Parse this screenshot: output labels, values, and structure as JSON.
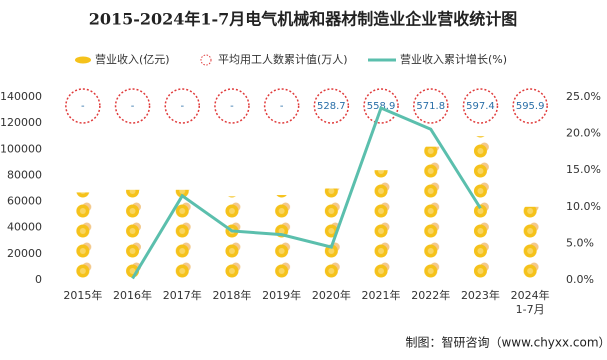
{
  "chart_data": {
    "type": "pictogram-combo",
    "title": "2015-2024年1-7月电气机械和器材制造业企业营收统计图",
    "categories": [
      "2015年",
      "2016年",
      "2017年",
      "2018年",
      "2019年",
      "2020年",
      "2021年",
      "2022年",
      "2023年",
      "2024年\n1-7月"
    ],
    "series": [
      {
        "name": "营业收入(亿元)",
        "color": "#f5c21b",
        "values": [
          67000,
          69000,
          69000,
          64000,
          65000,
          70000,
          84000,
          102000,
          110000,
          56000
        ]
      },
      {
        "name": "平均用工人数累计值(万人)",
        "color": "#e03b3b",
        "values": [
          null,
          null,
          null,
          null,
          null,
          528.7,
          558.9,
          571.8,
          597.4,
          595.9
        ],
        "value_labels": [
          "-",
          "-",
          "-",
          "-",
          "-",
          "528.7",
          "558.9",
          "571.8",
          "597.4",
          "595.9"
        ]
      },
      {
        "name": "营业收入累计增长(%)",
        "color": "#5bbfad",
        "axis": "y2",
        "values": [
          null,
          0.2,
          11.5,
          6.7,
          6.2,
          4.5,
          23.5,
          20.6,
          9.8,
          null
        ]
      }
    ],
    "ylim": [
      0,
      140000
    ],
    "yticks": [
      0,
      20000,
      40000,
      60000,
      80000,
      100000,
      120000,
      140000
    ],
    "y2lim": [
      0,
      25
    ],
    "y2ticks": [
      {
        "value": 0,
        "label": "0.0%"
      },
      {
        "value": 5,
        "label": "5.0%"
      },
      {
        "value": 10,
        "label": "10.0%"
      },
      {
        "value": 15,
        "label": "15.0%"
      },
      {
        "value": 20,
        "label": "20.0%"
      },
      {
        "value": 25,
        "label": "25.0%"
      }
    ],
    "source": "制图：智研咨询（www.chyxx.com）"
  }
}
